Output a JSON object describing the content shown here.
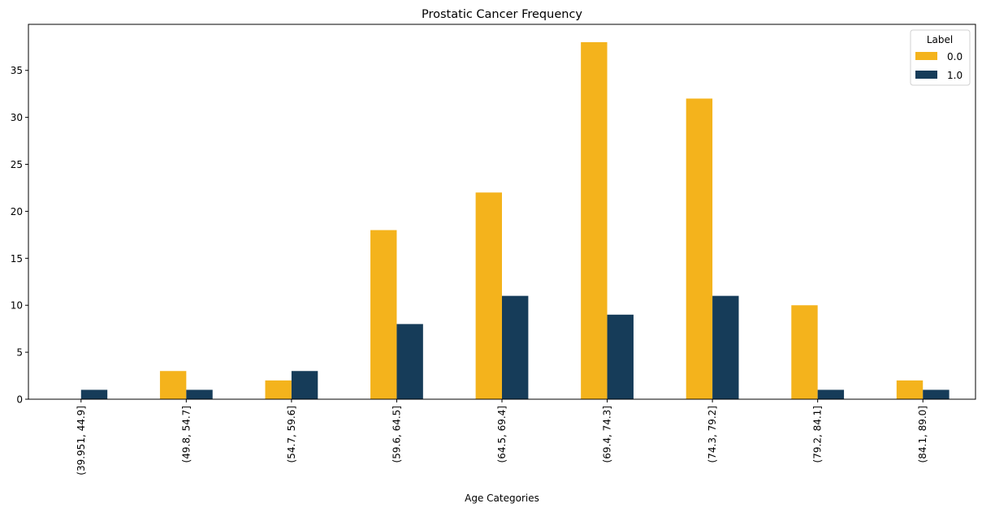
{
  "chart_data": {
    "type": "bar",
    "title": "Prostatic Cancer Frequency",
    "xlabel": "Age Categories",
    "ylabel": "",
    "categories": [
      "(39.951, 44.9]",
      "(49.8, 54.7]",
      "(54.7, 59.6]",
      "(59.6, 64.5]",
      "(64.5, 69.4]",
      "(69.4, 74.3]",
      "(74.3, 79.2]",
      "(79.2, 84.1]",
      "(84.1, 89.0]"
    ],
    "series": [
      {
        "name": "0.0",
        "color": "#f4b31c",
        "values": [
          0,
          3,
          2,
          18,
          22,
          38,
          32,
          10,
          2
        ]
      },
      {
        "name": "1.0",
        "color": "#163c59",
        "values": [
          1,
          1,
          3,
          8,
          11,
          9,
          11,
          1,
          1
        ]
      }
    ],
    "ylim": [
      0,
      39.9
    ],
    "yticks": [
      0,
      5,
      10,
      15,
      20,
      25,
      30,
      35
    ],
    "legend": {
      "title": "Label",
      "placement": "top-right"
    },
    "grid": false
  }
}
